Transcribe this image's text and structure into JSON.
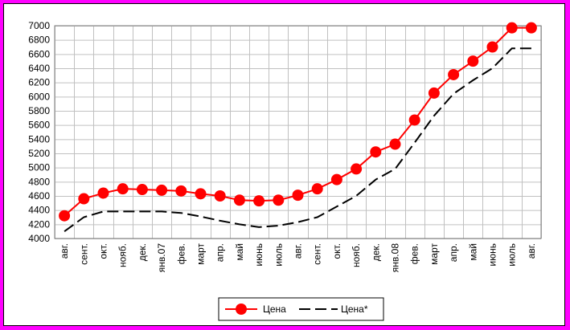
{
  "chart_data": {
    "type": "line",
    "categories": [
      "авг.",
      "сент.",
      "окт.",
      "нояб.",
      "дек.",
      "янв.07",
      "фев.",
      "март",
      "апр.",
      "май",
      "июнь",
      "июль",
      "авг.",
      "сент.",
      "окт.",
      "нояб.",
      "дек.",
      "янв.08",
      "фев.",
      "март",
      "апр.",
      "май",
      "июнь",
      "июль",
      "авг."
    ],
    "series": [
      {
        "name": "Цена",
        "color": "#ff0000",
        "style": "solid line with circle markers",
        "values": [
          4320,
          4560,
          4640,
          4700,
          4690,
          4680,
          4670,
          4630,
          4600,
          4540,
          4530,
          4540,
          4610,
          4700,
          4830,
          4980,
          5220,
          5330,
          5670,
          6050,
          6310,
          6500,
          6700,
          6970,
          6970
        ]
      },
      {
        "name": "Цена*",
        "color": "#000000",
        "style": "dashed line",
        "values": [
          4100,
          4300,
          4380,
          4380,
          4380,
          4380,
          4360,
          4310,
          4250,
          4200,
          4160,
          4180,
          4230,
          4300,
          4450,
          4600,
          4830,
          4980,
          5350,
          5730,
          6040,
          6230,
          6400,
          6680,
          6680
        ]
      }
    ],
    "ylim": [
      4000,
      7000
    ],
    "yticks": [
      4000,
      4200,
      4400,
      4600,
      4800,
      5000,
      5200,
      5400,
      5600,
      5800,
      6000,
      6200,
      6400,
      6600,
      6800,
      7000
    ],
    "grid": true,
    "legend": "bottom-center",
    "title": "",
    "xlabel": "",
    "ylabel": ""
  }
}
